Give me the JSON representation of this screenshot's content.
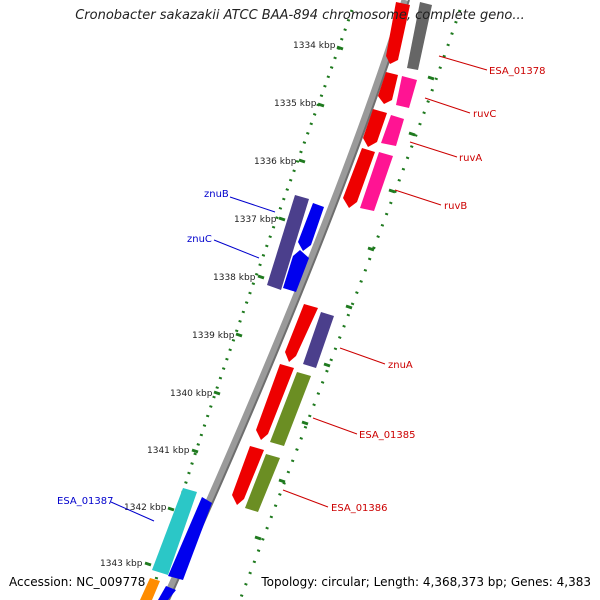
{
  "title": "Cronobacter sakazakii ATCC BAA-894 chromosome, complete geno...",
  "footer": {
    "accession": "Accession: NC_009778",
    "topology": "Topology: circular; Length: 4,368,373 bp; Genes: 4,383"
  },
  "ruler": {
    "labels": [
      "1334 kbp",
      "1335 kbp",
      "1336 kbp",
      "1337 kbp",
      "1338 kbp",
      "1339 kbp",
      "1340 kbp",
      "1341 kbp",
      "1342 kbp",
      "1343 kbp"
    ]
  },
  "colors": {
    "backbone": "#8f8f8f",
    "ruler": "#1f7a1f",
    "label_forward": "#0000cc",
    "label_reverse": "#cc0000"
  },
  "genes": {
    "forward": [
      {
        "name": "znuB",
        "label": "znuB",
        "color": "#4b3f8c"
      },
      {
        "name": "znuC",
        "label": "znuC",
        "color": "#0000ee"
      },
      {
        "name": "ESA_01387",
        "label": "ESA_01387",
        "color": "#2bc7c7"
      }
    ],
    "reverse": [
      {
        "name": "ESA_01378",
        "label": "ESA_01378",
        "color": "#666666"
      },
      {
        "name": "ruvC",
        "label": "ruvC",
        "color": "#ff1493"
      },
      {
        "name": "ruvA",
        "label": "ruvA",
        "color": "#ff1493"
      },
      {
        "name": "ruvB",
        "label": "ruvB",
        "color": "#ff1493"
      },
      {
        "name": "znuA",
        "label": "znuA",
        "color": "#4b3f8c"
      },
      {
        "name": "ESA_01385",
        "label": "ESA_01385",
        "color": "#6b8e23"
      },
      {
        "name": "ESA_01386",
        "label": "ESA_01386",
        "color": "#6b8e23"
      }
    ]
  }
}
